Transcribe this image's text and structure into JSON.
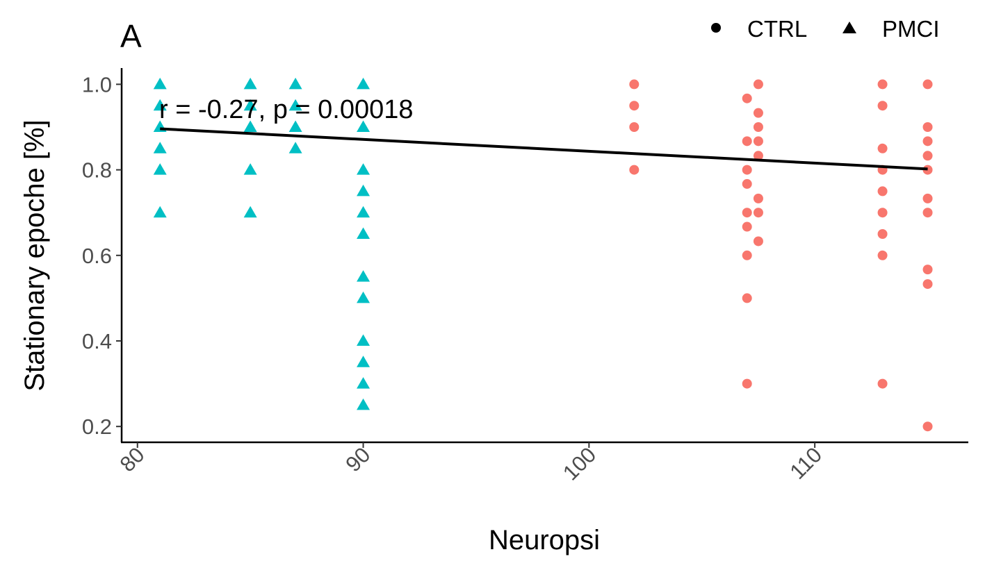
{
  "chart_data": {
    "type": "scatter",
    "panel_label": "A",
    "xlabel": "Neuropsi",
    "ylabel": "Stationary epoche [%]",
    "xlim": [
      79.3,
      116.8
    ],
    "ylim": [
      0.163,
      1.038
    ],
    "x_ticks": [
      80,
      90,
      100,
      110
    ],
    "y_ticks": [
      0.2,
      0.4,
      0.6,
      0.8,
      1.0
    ],
    "x_tick_labels": [
      "80",
      "90",
      "100",
      "110"
    ],
    "y_tick_labels": [
      "0.2",
      "0.4",
      "0.6",
      "0.8",
      "1.0"
    ],
    "grid": false,
    "legend": {
      "position": "top-right",
      "entries": [
        {
          "label": "CTRL",
          "shape": "circle"
        },
        {
          "label": "PMCI",
          "shape": "triangle"
        }
      ]
    },
    "annotation": "r = -0.27, p = 0.00018",
    "trend_line": {
      "x": [
        81,
        115
      ],
      "y": [
        0.896,
        0.802
      ],
      "color": "#000000"
    },
    "series": [
      {
        "name": "CTRL",
        "color": "#F8766D",
        "shape": "circle",
        "points": [
          [
            102,
            1.0
          ],
          [
            102,
            0.95
          ],
          [
            102,
            0.9
          ],
          [
            102,
            0.8
          ],
          [
            107,
            0.967
          ],
          [
            107,
            0.867
          ],
          [
            107,
            0.8
          ],
          [
            107,
            0.767
          ],
          [
            107,
            0.7
          ],
          [
            107,
            0.667
          ],
          [
            107,
            0.6
          ],
          [
            107,
            0.5
          ],
          [
            107,
            0.3
          ],
          [
            107.5,
            1.0
          ],
          [
            107.5,
            0.933
          ],
          [
            107.5,
            0.9
          ],
          [
            107.5,
            0.867
          ],
          [
            107.5,
            0.833
          ],
          [
            107.5,
            0.733
          ],
          [
            107.5,
            0.7
          ],
          [
            107.5,
            0.633
          ],
          [
            113,
            1.0
          ],
          [
            113,
            0.95
          ],
          [
            113,
            0.85
          ],
          [
            113,
            0.8
          ],
          [
            113,
            0.75
          ],
          [
            113,
            0.7
          ],
          [
            113,
            0.65
          ],
          [
            113,
            0.6
          ],
          [
            113,
            0.3
          ],
          [
            115,
            1.0
          ],
          [
            115,
            0.9
          ],
          [
            115,
            0.867
          ],
          [
            115,
            0.833
          ],
          [
            115,
            0.8
          ],
          [
            115,
            0.733
          ],
          [
            115,
            0.7
          ],
          [
            115,
            0.567
          ],
          [
            115,
            0.533
          ],
          [
            115,
            0.2
          ]
        ]
      },
      {
        "name": "PMCI",
        "color": "#00BFC4",
        "shape": "triangle",
        "points": [
          [
            81,
            1.0
          ],
          [
            81,
            0.95
          ],
          [
            81,
            0.9
          ],
          [
            81,
            0.85
          ],
          [
            81,
            0.8
          ],
          [
            81,
            0.7
          ],
          [
            85,
            1.0
          ],
          [
            85,
            0.95
          ],
          [
            85,
            0.9
          ],
          [
            85,
            0.8
          ],
          [
            85,
            0.7
          ],
          [
            87,
            1.0
          ],
          [
            87,
            0.95
          ],
          [
            87,
            0.9
          ],
          [
            87,
            0.85
          ],
          [
            90,
            1.0
          ],
          [
            90,
            0.9
          ],
          [
            90,
            0.8
          ],
          [
            90,
            0.75
          ],
          [
            90,
            0.7
          ],
          [
            90,
            0.65
          ],
          [
            90,
            0.55
          ],
          [
            90,
            0.5
          ],
          [
            90,
            0.4
          ],
          [
            90,
            0.35
          ],
          [
            90,
            0.3
          ],
          [
            90,
            0.25
          ]
        ]
      }
    ]
  }
}
